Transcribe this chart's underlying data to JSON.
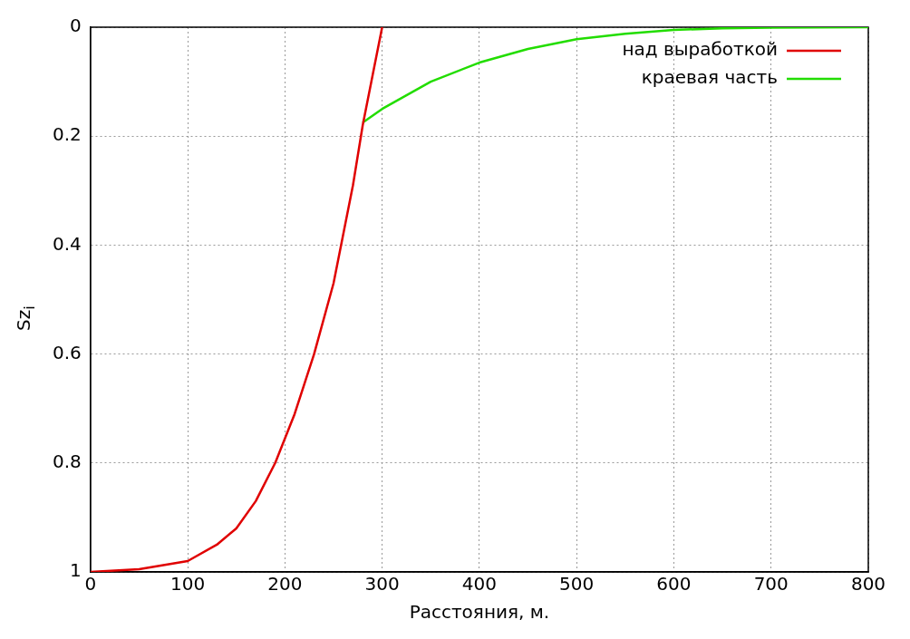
{
  "chart_data": {
    "type": "line",
    "xlabel": "Расстояния, м.",
    "ylabel": "Sz$_{i}$",
    "xlim": [
      0,
      800
    ],
    "xticks": [
      0,
      100,
      200,
      300,
      400,
      500,
      600,
      700,
      800
    ],
    "ylim": [
      1,
      0
    ],
    "yticks": [
      0,
      0.2,
      0.4,
      0.6,
      0.8,
      1
    ],
    "grid": true,
    "legend": "top right",
    "marker": "none",
    "line_style": "solid",
    "series": [
      {
        "name": "над выработкой",
        "color": "#e00000",
        "x": [
          0,
          50,
          100,
          130,
          150,
          170,
          190,
          210,
          230,
          250,
          270,
          280,
          290,
          300
        ],
        "values": [
          1,
          0.995,
          0.98,
          0.95,
          0.92,
          0.87,
          0.8,
          0.71,
          0.6,
          0.47,
          0.29,
          0.18,
          0.09,
          0
        ]
      },
      {
        "name": "краевая часть",
        "color": "#22dd00",
        "x": [
          280,
          300,
          350,
          400,
          450,
          500,
          550,
          600,
          650,
          700,
          800
        ],
        "values": [
          0.175,
          0.15,
          0.1,
          0.065,
          0.04,
          0.022,
          0.012,
          0.005,
          0.002,
          0.001,
          0
        ]
      }
    ]
  }
}
